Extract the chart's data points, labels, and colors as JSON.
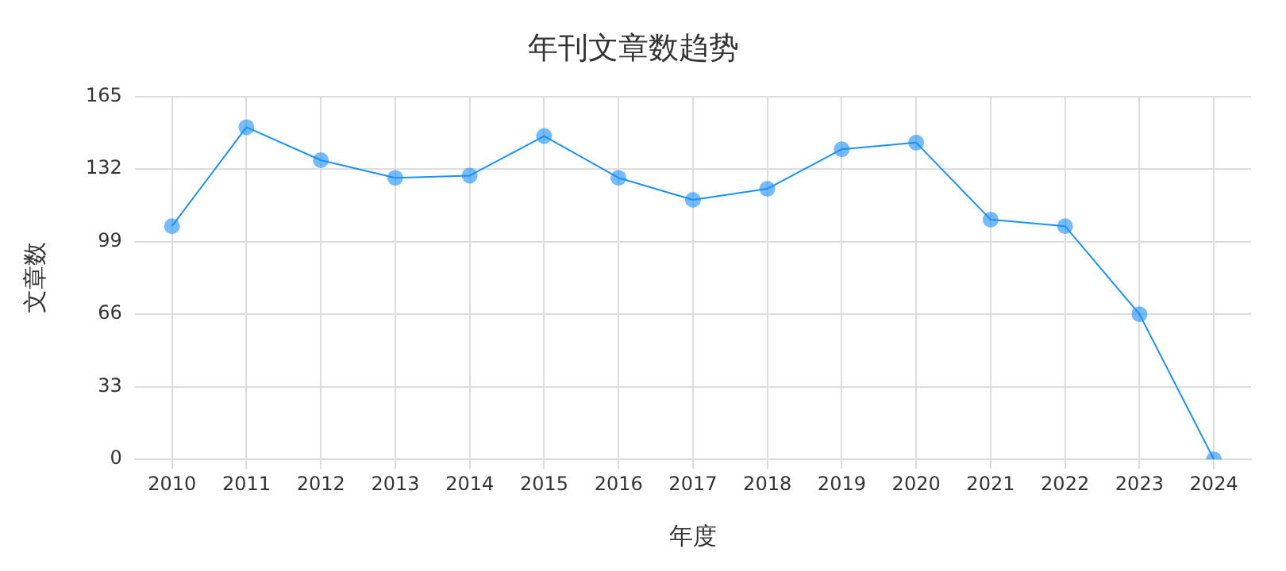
{
  "chart_data": {
    "type": "line",
    "title": "年刊文章数趋势",
    "xlabel": "年度",
    "ylabel": "文章数",
    "categories": [
      "2010",
      "2011",
      "2012",
      "2013",
      "2014",
      "2015",
      "2016",
      "2017",
      "2018",
      "2019",
      "2020",
      "2021",
      "2022",
      "2023",
      "2024"
    ],
    "series": [
      {
        "color": "#1890ff",
        "values": [
          106,
          151,
          136,
          128,
          129,
          147,
          128,
          118,
          123,
          141,
          144,
          109,
          106,
          66,
          0
        ]
      }
    ],
    "ylim": [
      0,
      165
    ],
    "yticks": [
      0,
      33,
      66,
      99,
      132,
      165
    ],
    "grid": true,
    "legend": false,
    "marker": "circle",
    "line_style": "solid"
  }
}
